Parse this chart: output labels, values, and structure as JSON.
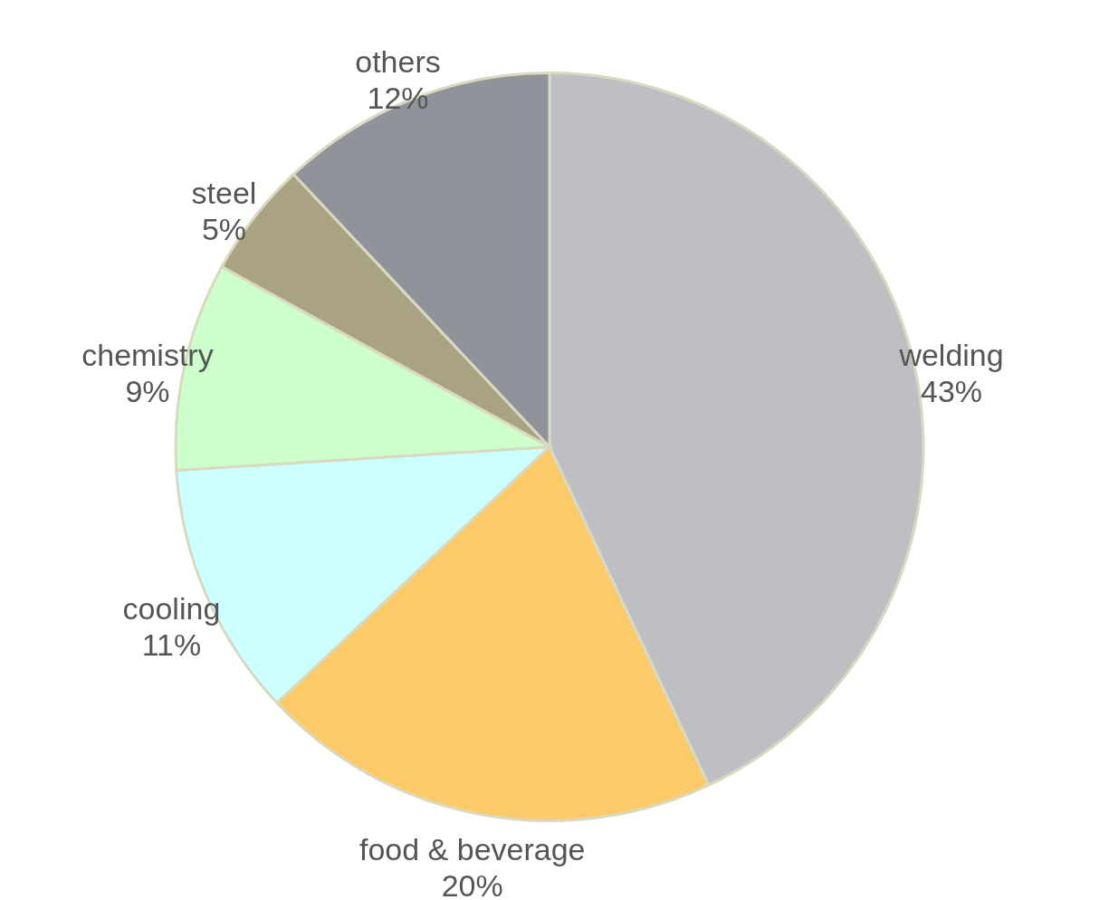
{
  "chart_data": {
    "type": "pie",
    "categories": [
      "welding",
      "food & beverage",
      "cooling",
      "chemistry",
      "steel",
      "others"
    ],
    "values": [
      43,
      20,
      11,
      9,
      5,
      12
    ],
    "value_labels": [
      "43%",
      "20%",
      "11%",
      "9%",
      "5%",
      "12%"
    ],
    "colors": [
      "#bebfc3",
      "#fdca68",
      "#ccffff",
      "#ccffcc",
      "#a9a283",
      "#90939a"
    ]
  }
}
